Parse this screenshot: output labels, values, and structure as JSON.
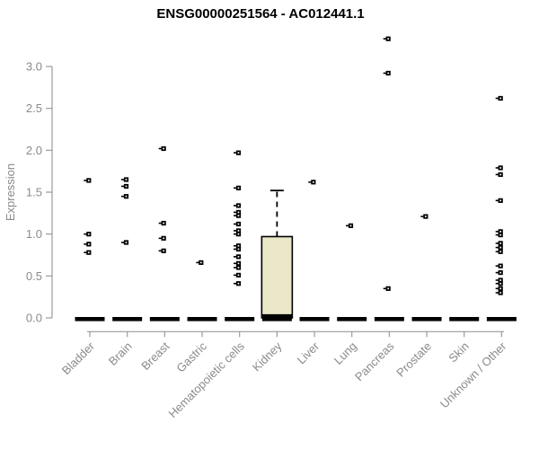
{
  "chart_data": {
    "type": "scatter",
    "subtype": "boxplot-with-points",
    "title": "ENSG00000251564 - AC012441.1",
    "xlabel": "",
    "ylabel": "Expression",
    "ylim": [
      0,
      3.4
    ],
    "yticks": [
      0.0,
      0.5,
      1.0,
      1.5,
      2.0,
      2.5,
      3.0
    ],
    "grid": false,
    "legend": "none",
    "categories": [
      "Bladder",
      "Brain",
      "Breast",
      "Gastric",
      "Hematopoietic cells",
      "Kidney",
      "Liver",
      "Lung",
      "Pancreas",
      "Prostate",
      "Skin",
      "Unknown / Other"
    ],
    "series": [
      {
        "category": "Bladder",
        "zero_bar": true,
        "points": [
          1.64,
          1.0,
          0.88,
          0.78
        ]
      },
      {
        "category": "Brain",
        "zero_bar": true,
        "points": [
          1.65,
          1.57,
          1.45,
          0.9
        ]
      },
      {
        "category": "Breast",
        "zero_bar": true,
        "points": [
          2.02,
          1.13,
          0.95,
          0.8
        ]
      },
      {
        "category": "Gastric",
        "zero_bar": true,
        "points": [
          0.66
        ]
      },
      {
        "category": "Hematopoietic cells",
        "zero_bar": true,
        "points": [
          1.97,
          1.55,
          1.34,
          1.26,
          1.22,
          1.12,
          1.04,
          1.0,
          0.86,
          0.82,
          0.73,
          0.65,
          0.6,
          0.51,
          0.41
        ]
      },
      {
        "category": "Kidney",
        "zero_bar": true,
        "points": []
      },
      {
        "category": "Liver",
        "zero_bar": true,
        "points": [
          1.62
        ]
      },
      {
        "category": "Lung",
        "zero_bar": true,
        "points": [
          1.1
        ]
      },
      {
        "category": "Pancreas",
        "zero_bar": true,
        "points": [
          3.33,
          2.92,
          0.35
        ]
      },
      {
        "category": "Prostate",
        "zero_bar": true,
        "points": [
          1.21
        ]
      },
      {
        "category": "Skin",
        "zero_bar": true,
        "points": []
      },
      {
        "category": "Unknown / Other",
        "zero_bar": true,
        "points": [
          2.62,
          1.79,
          1.71,
          1.4,
          1.03,
          0.99,
          0.89,
          0.84,
          0.79,
          0.62,
          0.54,
          0.45,
          0.41,
          0.35,
          0.3
        ]
      }
    ],
    "box": {
      "category": "Kidney",
      "q1": 0.0,
      "median": 0.02,
      "q3": 0.97,
      "whisker_low": 0.0,
      "whisker_high": 1.52
    },
    "colors": {
      "title": "#000000",
      "axis": "#9b9b9b",
      "tick_label": "#8a8a8a",
      "point": "#000000",
      "box_fill": "#ebe7c9",
      "box_stroke": "#000000",
      "background": "#ffffff"
    }
  }
}
